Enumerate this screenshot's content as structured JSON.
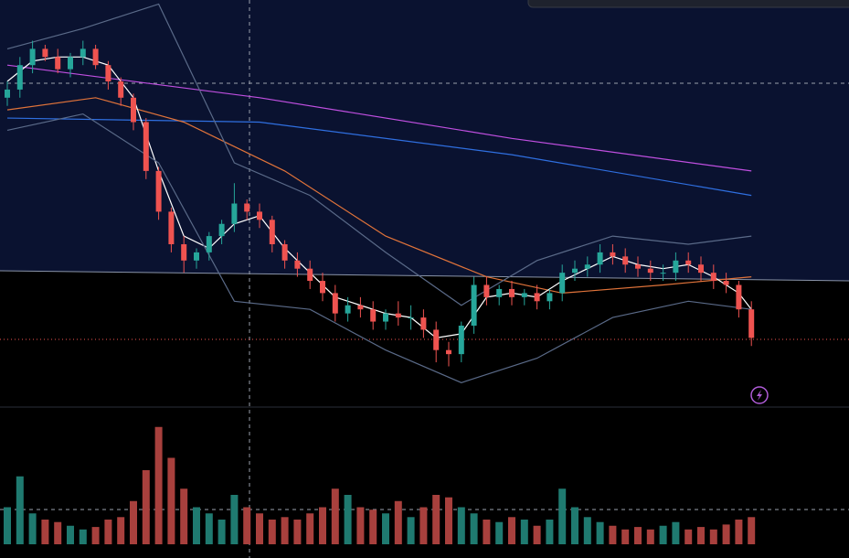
{
  "chart_data": {
    "type": "candlestick",
    "up_color": "#26a69a",
    "down_color": "#ef5350",
    "volume_up_color": "#1f7a70",
    "volume_down_color": "#a8403d",
    "ylim": [
      0,
      100
    ],
    "open": [
      76,
      78,
      84,
      88,
      86,
      83,
      86,
      88,
      84,
      80,
      76,
      70,
      58,
      48,
      40,
      36,
      38,
      42,
      45,
      50,
      48,
      46,
      40,
      36,
      34,
      31,
      28,
      23,
      25,
      24,
      21,
      23,
      22,
      22,
      19,
      14,
      13,
      20,
      30,
      27,
      29,
      27,
      28,
      26,
      28,
      33,
      34,
      35,
      38,
      37,
      35,
      34,
      33,
      33,
      36,
      35,
      33,
      31,
      30,
      24
    ],
    "high": [
      80,
      86,
      90,
      89,
      88,
      87,
      90,
      89,
      85,
      81,
      77,
      71,
      59,
      49,
      42,
      39,
      43,
      46,
      55,
      51,
      50,
      47,
      41,
      38,
      36,
      33,
      30,
      27,
      27,
      26,
      24,
      26,
      25,
      24,
      21,
      16,
      21,
      32,
      32,
      30,
      31,
      29,
      30,
      29,
      35,
      36,
      37,
      40,
      40,
      39,
      37,
      36,
      35,
      38,
      38,
      37,
      35,
      33,
      31,
      26
    ],
    "low": [
      74,
      76,
      82,
      85,
      82,
      81,
      84,
      83,
      78,
      74,
      68,
      56,
      46,
      38,
      33,
      34,
      36,
      40,
      43,
      46,
      44,
      38,
      34,
      32,
      29,
      26,
      21,
      21,
      22,
      19,
      19,
      20,
      19,
      17,
      11,
      10,
      11,
      18,
      25,
      25,
      25,
      25,
      24,
      24,
      26,
      31,
      32,
      33,
      35,
      33,
      32,
      31,
      31,
      31,
      33,
      31,
      29,
      28,
      22,
      15
    ],
    "close": [
      78,
      84,
      88,
      86,
      83,
      86,
      88,
      84,
      80,
      76,
      70,
      58,
      48,
      40,
      36,
      38,
      42,
      45,
      50,
      48,
      46,
      40,
      36,
      34,
      31,
      28,
      23,
      25,
      24,
      21,
      23,
      22,
      22,
      19,
      14,
      13,
      20,
      30,
      27,
      29,
      27,
      28,
      26,
      28,
      33,
      34,
      35,
      38,
      37,
      35,
      34,
      33,
      33,
      36,
      35,
      33,
      31,
      30,
      24,
      17
    ],
    "volume": [
      30,
      55,
      25,
      20,
      18,
      15,
      12,
      14,
      20,
      22,
      35,
      60,
      95,
      70,
      45,
      30,
      25,
      20,
      40,
      30,
      25,
      20,
      22,
      20,
      25,
      30,
      45,
      40,
      30,
      28,
      25,
      35,
      22,
      30,
      40,
      38,
      30,
      25,
      20,
      18,
      22,
      20,
      15,
      20,
      45,
      30,
      22,
      18,
      15,
      12,
      14,
      12,
      15,
      18,
      12,
      14,
      12,
      16,
      20,
      22
    ],
    "volume_ylim": [
      0,
      100
    ],
    "lines": [
      {
        "color": "#c04fe0",
        "x": [
          0,
          20,
          40,
          59
        ],
        "values": [
          84,
          76,
          66,
          58
        ]
      },
      {
        "color": "#2f6fe0",
        "x": [
          0,
          20,
          40,
          59
        ],
        "values": [
          71,
          70,
          62,
          52
        ]
      },
      {
        "color": "#e0733a",
        "x": [
          0,
          7,
          14,
          22,
          30,
          38,
          44,
          52,
          59
        ],
        "values": [
          73,
          76,
          70,
          58,
          42,
          32,
          28,
          30,
          32
        ]
      },
      {
        "color": "#ffffff",
        "x": [
          0,
          2,
          4,
          6,
          8,
          10,
          12,
          14,
          16,
          18,
          20,
          22,
          24,
          26,
          28,
          30,
          32,
          34,
          36,
          38,
          40,
          42,
          44,
          46,
          48,
          50,
          52,
          54,
          56,
          58,
          59
        ],
        "values": [
          80,
          85,
          86,
          86,
          84,
          76,
          58,
          42,
          39,
          45,
          47,
          39,
          33,
          27,
          25,
          23,
          22,
          17,
          18,
          27,
          28,
          27,
          31,
          34,
          37,
          35,
          34,
          35,
          32,
          28,
          24
        ]
      },
      {
        "color": "#5a6a88",
        "x": [
          0,
          6,
          12,
          18,
          24,
          30,
          36,
          42,
          48,
          54,
          59
        ],
        "values": [
          88,
          93,
          99,
          60,
          52,
          38,
          25,
          36,
          42,
          40,
          42
        ]
      },
      {
        "color": "#5a6a88",
        "x": [
          0,
          6,
          12,
          18,
          24,
          30,
          36,
          42,
          48,
          54,
          59
        ],
        "values": [
          68,
          72,
          60,
          26,
          24,
          14,
          6,
          12,
          22,
          26,
          24
        ]
      }
    ]
  }
}
